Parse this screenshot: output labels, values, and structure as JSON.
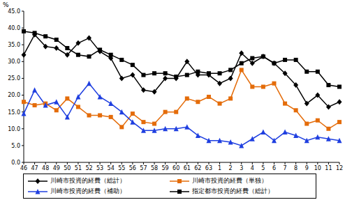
{
  "chart_data": {
    "type": "line",
    "y_label": "%",
    "categories": [
      "46",
      "47",
      "48",
      "49",
      "50",
      "51",
      "52",
      "53",
      "54",
      "55",
      "56",
      "57",
      "58",
      "59",
      "60",
      "61",
      "62",
      "63",
      "1",
      "2",
      "3",
      "4",
      "5",
      "6",
      "7",
      "8",
      "9",
      "10",
      "11",
      "12"
    ],
    "ylim": [
      0,
      45
    ],
    "yticks": [
      {
        "value": 0,
        "label": "0.0"
      },
      {
        "value": 5,
        "label": "5.0"
      },
      {
        "value": 10,
        "label": "10.0"
      },
      {
        "value": 15,
        "label": "15.0"
      },
      {
        "value": 20,
        "label": "20.0"
      },
      {
        "value": 25,
        "label": "25.0"
      },
      {
        "value": 30,
        "label": "30.0"
      },
      {
        "value": 35,
        "label": "35.0"
      },
      {
        "value": 40,
        "label": "40.0"
      },
      {
        "value": 45,
        "label": "45.0"
      }
    ],
    "grid": false,
    "legend": "bottom",
    "series": [
      {
        "name": "川崎市投資的経費（総計）",
        "color": "#000000",
        "marker": "diamond",
        "values": [
          32,
          38,
          34.5,
          34,
          32,
          35.5,
          37,
          33,
          31,
          25,
          26,
          21.5,
          21,
          25,
          25,
          30,
          26,
          26,
          23.5,
          25,
          32.5,
          29.5,
          31.5,
          29.5,
          26.5,
          23,
          17.5,
          20,
          16.5,
          18
        ]
      },
      {
        "name": "川崎市投資的経費（単独）",
        "color": "#e46c0a",
        "marker": "square",
        "values": [
          18,
          17,
          17.5,
          15.5,
          19,
          16.5,
          14,
          14,
          13.5,
          10.5,
          14.5,
          12,
          11.5,
          15,
          15,
          19,
          18,
          19.5,
          17.5,
          19,
          27.5,
          22.5,
          22.5,
          23.5,
          17.5,
          15.5,
          11.5,
          12.5,
          10,
          12
        ]
      },
      {
        "name": "川崎市投資的経費（補助）",
        "color": "#1f3fe0",
        "marker": "triangle",
        "values": [
          14.5,
          21.5,
          17,
          18,
          13.5,
          19.5,
          23.5,
          19.5,
          17.5,
          15,
          12,
          9.5,
          9.5,
          10,
          10,
          10.5,
          8,
          6.5,
          6.5,
          6,
          5,
          7,
          9,
          6.5,
          9,
          8,
          6.5,
          7.5,
          7,
          6.5
        ]
      },
      {
        "name": "指定都市投資的経費（総計）",
        "color": "#000000",
        "marker": "square",
        "values": [
          39,
          38.5,
          37.5,
          36.5,
          34,
          32,
          31.5,
          33.5,
          32,
          30.5,
          29,
          26,
          26.5,
          26.5,
          25.5,
          26,
          27,
          26.5,
          26.5,
          27.5,
          29.5,
          31,
          31.5,
          29.5,
          30.5,
          30.5,
          27,
          27,
          23,
          22.5
        ]
      }
    ]
  }
}
